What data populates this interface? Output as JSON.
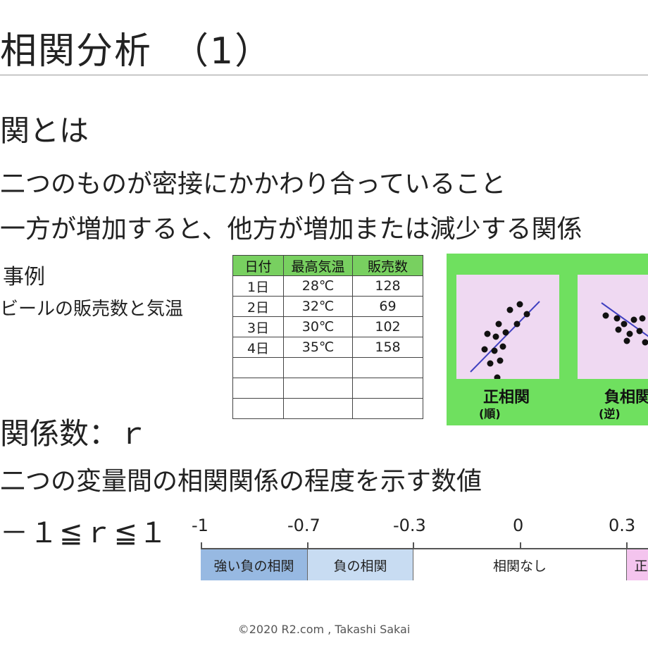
{
  "title": "相関分析　（1）",
  "section1": {
    "heading": "関とは"
  },
  "bullets": [
    "二つのものが密接にかかわり合っていること",
    "一方が増加すると、他方が増加または減少する関係"
  ],
  "example": {
    "label": "事例",
    "subtitle": "ビールの販売数と気温"
  },
  "table": {
    "headers": [
      "日付",
      "最高気温",
      "販売数"
    ],
    "rows": [
      [
        "1日",
        "28℃",
        "128"
      ],
      [
        "2日",
        "32℃",
        "69"
      ],
      [
        "3日",
        "30℃",
        "102"
      ],
      [
        "4日",
        "35℃",
        "158"
      ],
      [
        "",
        "",
        ""
      ],
      [
        "",
        "",
        ""
      ],
      [
        "",
        "",
        ""
      ]
    ]
  },
  "scatter": {
    "positive": {
      "title": "正相関",
      "sub": "(順)"
    },
    "negative": {
      "title": "負相関",
      "sub": "(逆)"
    },
    "colors": {
      "panel": "#6fe05f",
      "card": "#efd9f2",
      "line": "#4040c0",
      "dot": "#111111"
    }
  },
  "section2": {
    "heading": "関係数：ｒ"
  },
  "bullet3": "二つの変量間の相関関係の程度を示す数値",
  "range": "－１≦ｒ≦１",
  "scale": {
    "ticks": [
      "-1",
      "-0.7",
      "-0.3",
      "0",
      "0.3"
    ],
    "bands": [
      "強い負の相関",
      "負の相関",
      "相関なし",
      "正"
    ]
  },
  "footer": "©2020 R2.com , Takashi Sakai"
}
